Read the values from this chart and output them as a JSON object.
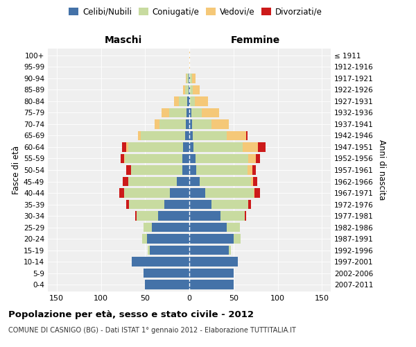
{
  "age_groups_bottom_to_top": [
    "0-4",
    "5-9",
    "10-14",
    "15-19",
    "20-24",
    "25-29",
    "30-34",
    "35-39",
    "40-44",
    "45-49",
    "50-54",
    "55-59",
    "60-64",
    "65-69",
    "70-74",
    "75-79",
    "80-84",
    "85-89",
    "90-94",
    "95-99",
    "100+"
  ],
  "birth_years_bottom_to_top": [
    "2007-2011",
    "2002-2006",
    "1997-2001",
    "1992-1996",
    "1987-1991",
    "1982-1986",
    "1977-1981",
    "1972-1976",
    "1967-1971",
    "1962-1966",
    "1957-1961",
    "1952-1956",
    "1947-1951",
    "1942-1946",
    "1937-1941",
    "1932-1936",
    "1927-1931",
    "1922-1926",
    "1917-1921",
    "1912-1916",
    "≤ 1911"
  ],
  "maschi": {
    "celibi": [
      50,
      52,
      65,
      45,
      48,
      42,
      35,
      28,
      22,
      14,
      8,
      8,
      7,
      5,
      4,
      3,
      2,
      1,
      1,
      0,
      0
    ],
    "coniugati": [
      0,
      0,
      0,
      2,
      5,
      10,
      25,
      40,
      52,
      55,
      58,
      65,
      62,
      50,
      30,
      20,
      10,
      4,
      2,
      0,
      0
    ],
    "vedovi": [
      0,
      0,
      0,
      0,
      0,
      0,
      0,
      0,
      0,
      0,
      0,
      1,
      2,
      3,
      5,
      8,
      5,
      2,
      1,
      0,
      0
    ],
    "divorziati": [
      0,
      0,
      0,
      0,
      0,
      0,
      1,
      3,
      5,
      6,
      5,
      4,
      5,
      0,
      0,
      0,
      0,
      0,
      0,
      0,
      0
    ]
  },
  "femmine": {
    "nubili": [
      50,
      50,
      55,
      45,
      50,
      42,
      35,
      25,
      18,
      12,
      8,
      7,
      5,
      4,
      3,
      2,
      1,
      1,
      1,
      0,
      0
    ],
    "coniugate": [
      0,
      0,
      0,
      2,
      8,
      15,
      28,
      42,
      55,
      58,
      58,
      60,
      55,
      38,
      22,
      12,
      5,
      3,
      2,
      0,
      0
    ],
    "vedove": [
      0,
      0,
      0,
      0,
      0,
      0,
      0,
      0,
      1,
      2,
      5,
      8,
      18,
      22,
      20,
      20,
      15,
      8,
      4,
      1,
      1
    ],
    "divorziate": [
      0,
      0,
      0,
      0,
      0,
      0,
      1,
      3,
      6,
      5,
      4,
      5,
      8,
      2,
      0,
      0,
      0,
      0,
      0,
      0,
      0
    ]
  },
  "colors": {
    "celibi_nubili": "#4472a8",
    "coniugati": "#c8dba0",
    "vedovi": "#f5c878",
    "divorziati": "#cc1a1a"
  },
  "xlim": 160,
  "title": "Popolazione per età, sesso e stato civile - 2012",
  "subtitle": "COMUNE DI CASNIGO (BG) - Dati ISTAT 1° gennaio 2012 - Elaborazione TUTTITALIA.IT",
  "ylabel_left": "Fasce di età",
  "ylabel_right": "Anni di nascita",
  "xlabel_maschi": "Maschi",
  "xlabel_femmine": "Femmine",
  "plot_bg_color": "#efefef",
  "background_color": "#ffffff",
  "grid_color": "#cccccc"
}
